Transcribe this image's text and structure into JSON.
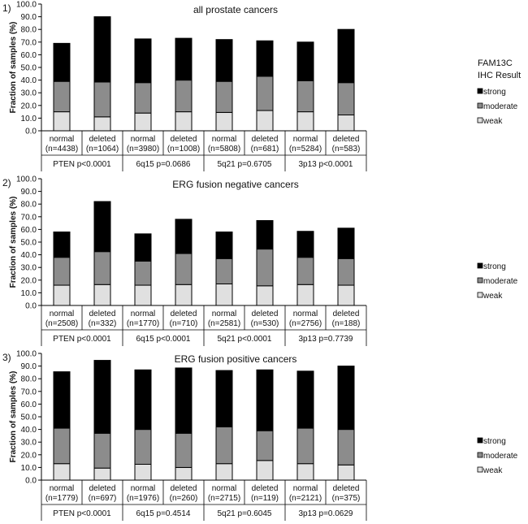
{
  "chart_data": [
    {
      "type": "bar",
      "stacked": true,
      "panel_label": "1)",
      "title": "all prostate cancers",
      "ylabel": "Fraction of samples (%)",
      "ylim": [
        0,
        100
      ],
      "yticks": [
        "0.0",
        "10.0",
        "20.0",
        "30.0",
        "40.0",
        "50.0",
        "60.0",
        "70.0",
        "80.0",
        "90.0",
        "100.0"
      ],
      "categories": [
        [
          "normal",
          "(n=4438)"
        ],
        [
          "deleted",
          "(n=1064)"
        ],
        [
          "normal",
          "(n=3980)"
        ],
        [
          "deleted",
          "(n=1008)"
        ],
        [
          "normal",
          "(n=5808)"
        ],
        [
          "deleted",
          "(n=681)"
        ],
        [
          "normal",
          "(n=5284)"
        ],
        [
          "deleted",
          "(n=583)"
        ]
      ],
      "groups": [
        "PTEN p<0.0001",
        "6q15 p=0.0686",
        "5q21 p=0.6705",
        "3p13 p<0.0001"
      ],
      "legend_title": [
        "FAM13C",
        "IHC Result"
      ],
      "legend_placement": "right",
      "series": [
        {
          "name": "weak",
          "color": "#e0e0e0",
          "values": [
            15,
            11,
            14,
            15,
            14.5,
            16,
            15,
            12.5
          ]
        },
        {
          "name": "moderate",
          "color": "#8c8c8c",
          "values": [
            24,
            27.5,
            24,
            25,
            24.5,
            27,
            24.5,
            25.5
          ]
        },
        {
          "name": "strong",
          "color": "#000000",
          "values": [
            30,
            51.5,
            34.5,
            33,
            33,
            28,
            30.5,
            42
          ]
        }
      ]
    },
    {
      "type": "bar",
      "stacked": true,
      "panel_label": "2)",
      "title": "ERG fusion negative cancers",
      "ylabel": "Fraction of samples (%)",
      "ylim": [
        0,
        100
      ],
      "yticks": [
        "0.0",
        "10.0",
        "20.0",
        "30.0",
        "40.0",
        "50.0",
        "60.0",
        "70.0",
        "80.0",
        "90.0",
        "100.0"
      ],
      "categories": [
        [
          "normal",
          "(n=2508)"
        ],
        [
          "deleted",
          "(n=332)"
        ],
        [
          "normal",
          "(n=1770)"
        ],
        [
          "deleted",
          "(n=710)"
        ],
        [
          "normal",
          "(n=2581)"
        ],
        [
          "deleted",
          "(n=530)"
        ],
        [
          "normal",
          "(n=2756)"
        ],
        [
          "deleted",
          "(n=188)"
        ]
      ],
      "groups": [
        "PTEN p<0.0001",
        "6q15 p<0.0001",
        "5q21 p<0.0001",
        "3p13 p=0.7739"
      ],
      "legend_placement": "right",
      "series": [
        {
          "name": "weak",
          "color": "#e0e0e0",
          "values": [
            16,
            16.5,
            16,
            16.5,
            17,
            15.5,
            16.5,
            16
          ]
        },
        {
          "name": "moderate",
          "color": "#8c8c8c",
          "values": [
            22,
            26,
            19,
            24.5,
            20,
            29,
            21.5,
            21
          ]
        },
        {
          "name": "strong",
          "color": "#000000",
          "values": [
            20,
            39.5,
            21.5,
            27,
            21,
            22.5,
            20.5,
            24
          ]
        }
      ]
    },
    {
      "type": "bar",
      "stacked": true,
      "panel_label": "3)",
      "title": "ERG fusion positive cancers",
      "ylabel": "Fraction of samples (%)",
      "ylim": [
        0,
        100
      ],
      "yticks": [
        "0.0",
        "10.0",
        "20.0",
        "30.0",
        "40.0",
        "50.0",
        "60.0",
        "70.0",
        "80.0",
        "90.0",
        "100.0"
      ],
      "categories": [
        [
          "normal",
          "(n=1779)"
        ],
        [
          "deleted",
          "(n=697)"
        ],
        [
          "normal",
          "(n=1976)"
        ],
        [
          "deleted",
          "(n=260)"
        ],
        [
          "normal",
          "(n=2715)"
        ],
        [
          "deleted",
          "(n=119)"
        ],
        [
          "normal",
          "(n=2121)"
        ],
        [
          "deleted",
          "(n=375)"
        ]
      ],
      "groups": [
        "PTEN p<0.0001",
        "6q15 p=0.4514",
        "5q21 p=0.6045",
        "3p13 p=0.0629"
      ],
      "legend_placement": "right",
      "series": [
        {
          "name": "weak",
          "color": "#e0e0e0",
          "values": [
            13,
            9.5,
            12.5,
            10,
            13,
            15.5,
            13,
            12
          ]
        },
        {
          "name": "moderate",
          "color": "#8c8c8c",
          "values": [
            28,
            27.5,
            27.5,
            27,
            29,
            23.5,
            28,
            28
          ]
        },
        {
          "name": "strong",
          "color": "#000000",
          "values": [
            44.5,
            57.5,
            47,
            51.5,
            44.5,
            48,
            45,
            50
          ]
        }
      ]
    }
  ]
}
